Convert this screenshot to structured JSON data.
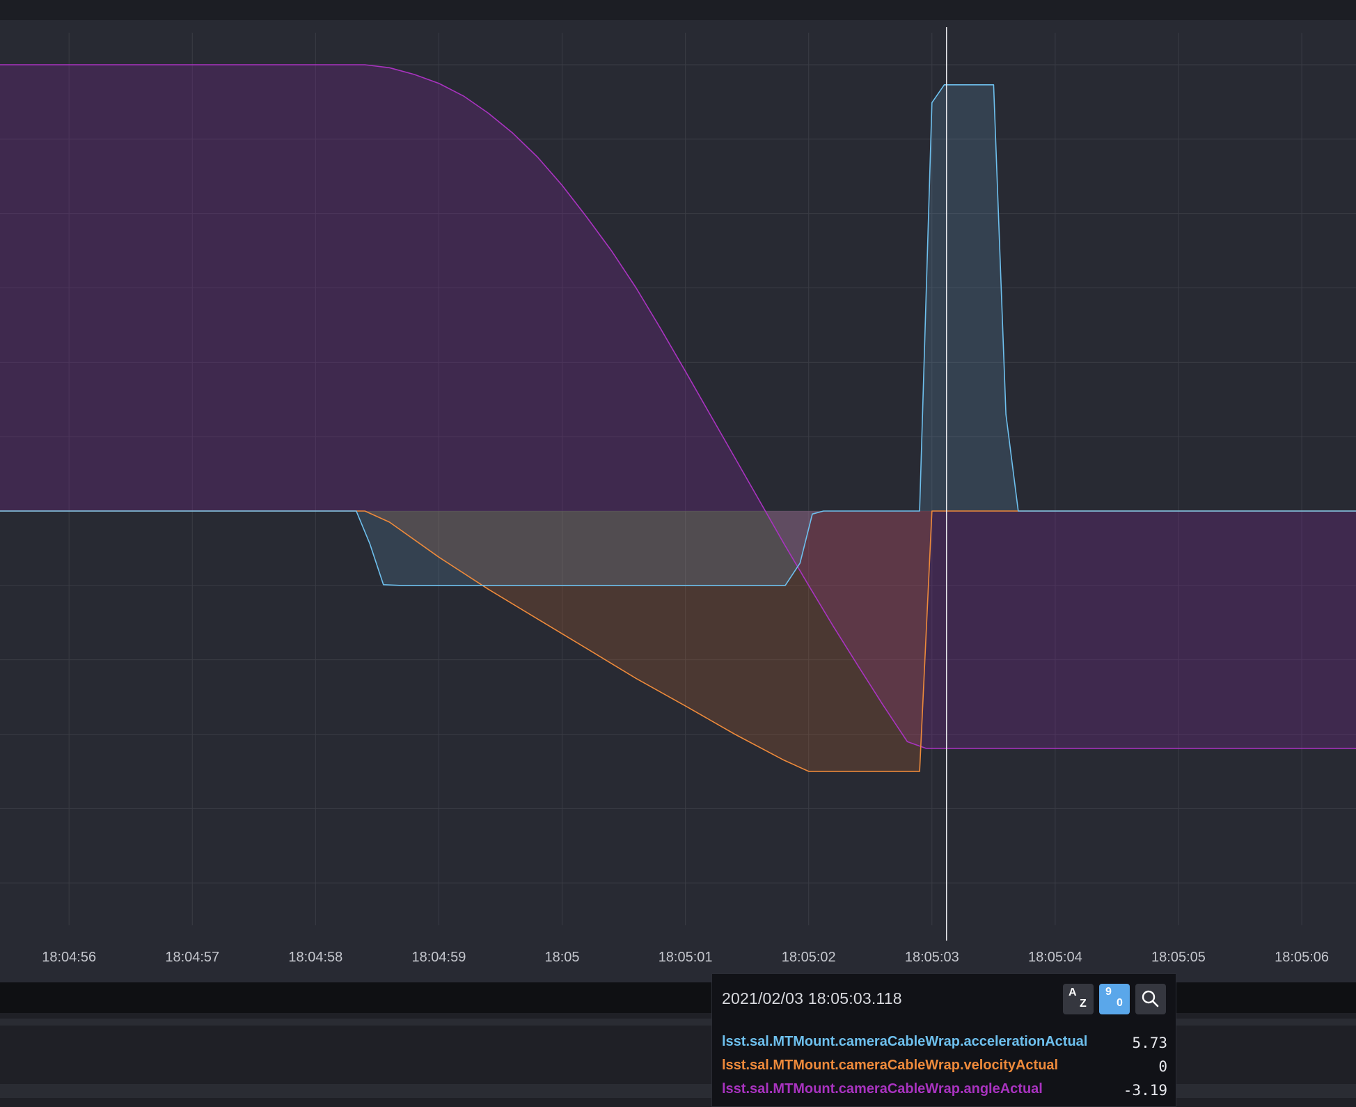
{
  "chart_data": {
    "type": "area",
    "x_ticks": [
      "18:04:56",
      "18:04:57",
      "18:04:58",
      "18:04:59",
      "18:05",
      "18:05:01",
      "18:05:02",
      "18:05:03",
      "18:05:04",
      "18:05:05",
      "18:05:06"
    ],
    "x_range": [
      "18:04:55.44",
      "18:05:06.44"
    ],
    "y_range": [
      -6,
      6
    ],
    "grid": true,
    "legend": "none",
    "crosshair_time": "18:05:03.118",
    "series": [
      {
        "name": "lsst.sal.MTMount.cameraCableWrap.angleActual",
        "color": "#a933c0",
        "fill": "rgba(126, 40, 150, 0.28)",
        "points": [
          [
            "18:04:55.44",
            6.0
          ],
          [
            "18:04:58.40",
            6.0
          ],
          [
            "18:04:58.60",
            5.96
          ],
          [
            "18:04:58.80",
            5.87
          ],
          [
            "18:04:59.00",
            5.75
          ],
          [
            "18:04:59.20",
            5.58
          ],
          [
            "18:04:59.40",
            5.35
          ],
          [
            "18:04:59.60",
            5.08
          ],
          [
            "18:04:59.80",
            4.76
          ],
          [
            "18:05:00.00",
            4.38
          ],
          [
            "18:05:00.20",
            3.95
          ],
          [
            "18:05:00.40",
            3.5
          ],
          [
            "18:05:00.60",
            3.0
          ],
          [
            "18:05:00.80",
            2.45
          ],
          [
            "18:05:01.00",
            1.88
          ],
          [
            "18:05:01.20",
            1.3
          ],
          [
            "18:05:01.40",
            0.72
          ],
          [
            "18:05:01.60",
            0.14
          ],
          [
            "18:05:01.80",
            -0.44
          ],
          [
            "18:05:02.00",
            -1.0
          ],
          [
            "18:05:02.20",
            -1.55
          ],
          [
            "18:05:02.40",
            -2.08
          ],
          [
            "18:05:02.60",
            -2.6
          ],
          [
            "18:05:02.80",
            -3.1
          ],
          [
            "18:05:02.95",
            -3.19
          ],
          [
            "18:05:06.44",
            -3.19
          ]
        ]
      },
      {
        "name": "lsst.sal.MTMount.cameraCableWrap.velocityActual",
        "color": "#ee8a3b",
        "fill": "rgba(200, 110, 50, 0.22)",
        "points": [
          [
            "18:04:55.44",
            0
          ],
          [
            "18:04:58.40",
            0
          ],
          [
            "18:04:58.60",
            -0.15
          ],
          [
            "18:04:59.00",
            -0.62
          ],
          [
            "18:04:59.40",
            -1.05
          ],
          [
            "18:04:59.80",
            -1.45
          ],
          [
            "18:05:00.20",
            -1.85
          ],
          [
            "18:05:00.60",
            -2.25
          ],
          [
            "18:05:01.00",
            -2.62
          ],
          [
            "18:05:01.40",
            -3.0
          ],
          [
            "18:05:01.80",
            -3.35
          ],
          [
            "18:05:02.00",
            -3.5
          ],
          [
            "18:05:02.90",
            -3.5
          ],
          [
            "18:05:03.00",
            0
          ],
          [
            "18:05:06.44",
            0
          ]
        ]
      },
      {
        "name": "lsst.sal.MTMount.cameraCableWrap.accelerationActual",
        "color": "#6ec0ee",
        "fill": "rgba(110, 170, 215, 0.18)",
        "points": [
          [
            "18:04:55.44",
            0
          ],
          [
            "18:04:58.33",
            0
          ],
          [
            "18:04:58.44",
            -0.44
          ],
          [
            "18:04:58.55",
            -0.99
          ],
          [
            "18:04:58.68",
            -1.0
          ],
          [
            "18:05:01.81",
            -1.0
          ],
          [
            "18:05:01.93",
            -0.7
          ],
          [
            "18:05:02.03",
            -0.04
          ],
          [
            "18:05:02.12",
            0
          ],
          [
            "18:05:02.90",
            0
          ],
          [
            "18:05:03.00",
            5.49
          ],
          [
            "18:05:03.10",
            5.73
          ],
          [
            "18:05:03.50",
            5.73
          ],
          [
            "18:05:03.60",
            1.3
          ],
          [
            "18:05:03.70",
            0
          ],
          [
            "18:05:06.44",
            0
          ]
        ]
      }
    ]
  },
  "tooltip": {
    "timestamp": "2021/02/03 18:05:03.118",
    "buttons": {
      "sort_alpha": [
        "A",
        "Z"
      ],
      "sort_numeric": [
        "9",
        "0"
      ],
      "search": "search"
    },
    "rows": [
      {
        "label": "lsst.sal.MTMount.cameraCableWrap.accelerationActual",
        "value": "5.73",
        "color": "#6ec0ee"
      },
      {
        "label": "lsst.sal.MTMount.cameraCableWrap.velocityActual",
        "value": "0",
        "color": "#ee8a3b"
      },
      {
        "label": "lsst.sal.MTMount.cameraCableWrap.angleActual",
        "value": "-3.19",
        "color": "#a933c0"
      }
    ]
  }
}
